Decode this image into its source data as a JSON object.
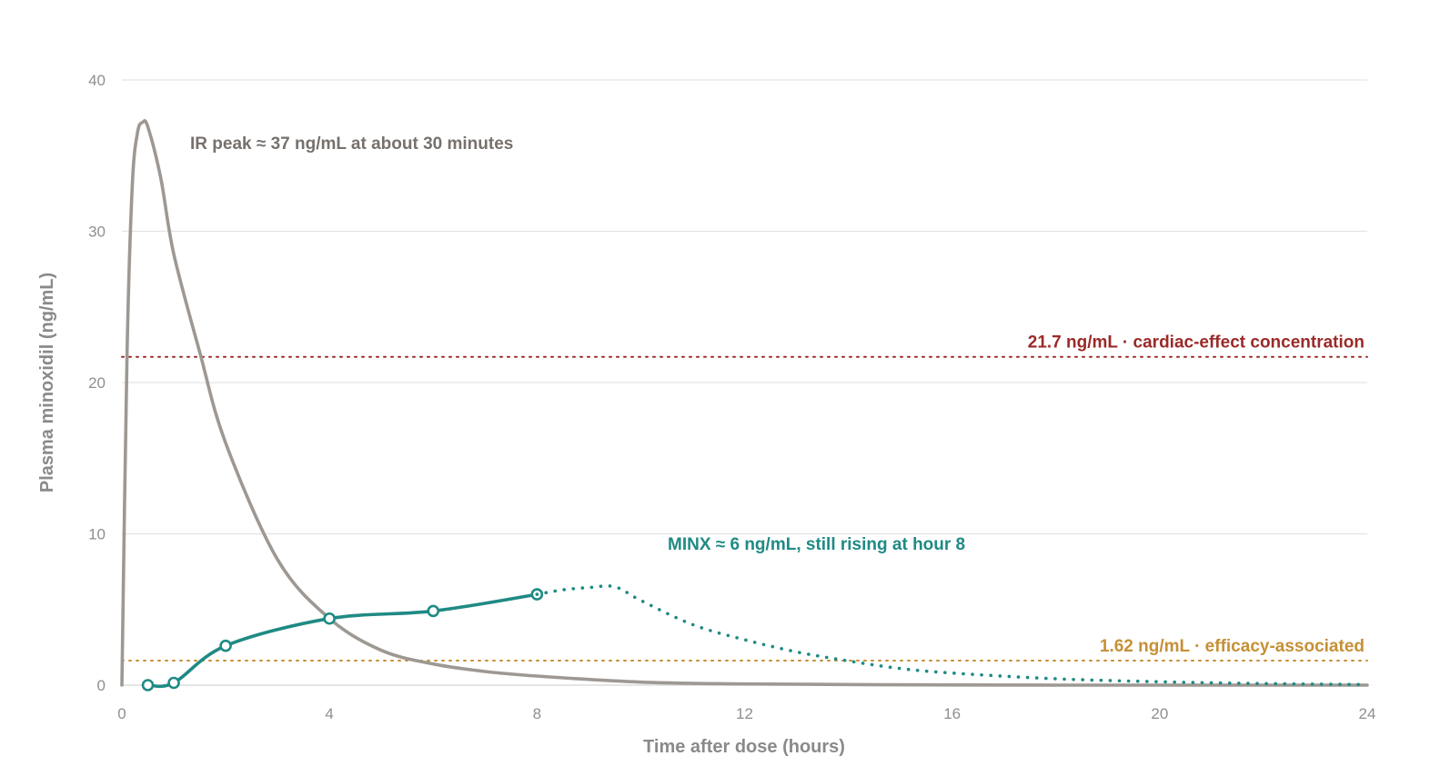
{
  "chart_data": {
    "type": "line",
    "title": "",
    "xlabel": "Time after dose (hours)",
    "ylabel": "Plasma minoxidil (ng/mL)",
    "xlim": [
      0,
      24
    ],
    "ylim": [
      0,
      40
    ],
    "x_ticks": [
      0,
      4,
      8,
      12,
      16,
      20,
      24
    ],
    "y_ticks": [
      0,
      10,
      20,
      30,
      40
    ],
    "grid": true,
    "colors": {
      "ir": "#9e9893",
      "minx": "#1f8a84",
      "cardiac": "#9b2a28",
      "efficacy": "#c69035",
      "grid": "#e3e3e3"
    },
    "series": [
      {
        "key": "ir",
        "style": "solid",
        "x": [
          0,
          0.1,
          0.2,
          0.3,
          0.4,
          0.5,
          0.75,
          1,
          1.5,
          2,
          3,
          4,
          5,
          6,
          7,
          8,
          10,
          12,
          16,
          20,
          24
        ],
        "y": [
          0,
          22,
          33,
          36.5,
          37.2,
          36.9,
          33.5,
          28.5,
          22,
          16,
          8.3,
          4.4,
          2.3,
          1.4,
          0.9,
          0.6,
          0.2,
          0.08,
          0.01,
          0,
          0
        ]
      },
      {
        "key": "minx",
        "style": "solid",
        "markers": true,
        "x": [
          0.5,
          1,
          2,
          4,
          6,
          8
        ],
        "y": [
          0,
          0.15,
          2.6,
          4.4,
          4.9,
          6.0
        ]
      },
      {
        "key": "minx_projection",
        "style": "dotted",
        "x": [
          8,
          8.5,
          9,
          9.5,
          10,
          11,
          12,
          13,
          14,
          15,
          16,
          18,
          20,
          22,
          24
        ],
        "y": [
          6.0,
          6.3,
          6.45,
          6.5,
          5.6,
          4.0,
          3.0,
          2.2,
          1.6,
          1.1,
          0.8,
          0.42,
          0.22,
          0.1,
          0.04
        ]
      }
    ],
    "reference_lines": [
      {
        "key": "cardiac",
        "y": 21.7,
        "label": "21.7 ng/mL · cardiac-effect concentration"
      },
      {
        "key": "efficacy",
        "y": 1.62,
        "label": "1.62 ng/mL · efficacy-associated"
      }
    ],
    "annotations": [
      {
        "key": "ir",
        "text": "IR peak ≈ 37 ng/mL at about 30 minutes"
      },
      {
        "key": "minx",
        "text": "MINX ≈ 6 ng/mL, still rising at hour 8"
      }
    ]
  }
}
